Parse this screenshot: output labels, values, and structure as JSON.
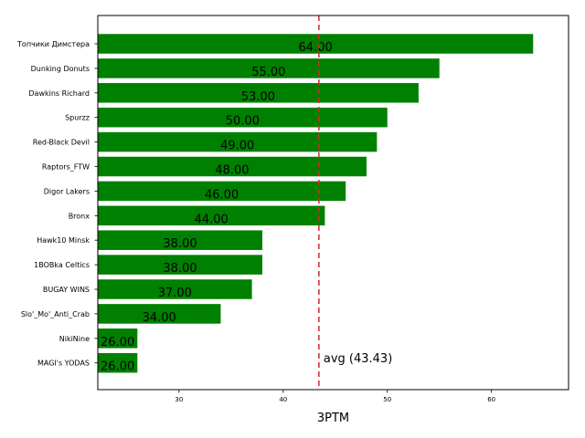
{
  "chart_data": {
    "type": "bar",
    "orientation": "horizontal",
    "categories": [
      "Топчики Димстера",
      "Dunking Donuts",
      "Dawkins Richard",
      "Spurzz",
      "Red-Black Devil",
      "Raptors_FTW",
      "Digor Lakers",
      "Bronx",
      "Hawk10 Minsk",
      "1BOBka Celtics",
      "BUGAY WINS",
      "Slo'_Mo'_Anti_Crab",
      "NikiNine",
      "MAGI's YODAS"
    ],
    "values": [
      64,
      55,
      53,
      50,
      49,
      48,
      46,
      44,
      38,
      38,
      37,
      34,
      26,
      26
    ],
    "value_labels": [
      "64.00",
      "55.00",
      "53.00",
      "50.00",
      "49.00",
      "48.00",
      "46.00",
      "44.00",
      "38.00",
      "38.00",
      "37.00",
      "34.00",
      "26.00",
      "26.00"
    ],
    "xlabel": "3PTM",
    "ylabel": "",
    "xlim": [
      22.2,
      67.4
    ],
    "xticks": [
      30,
      40,
      50,
      60
    ],
    "xtick_labels": [
      "30",
      "40",
      "50",
      "60"
    ],
    "bar_color": "#008000",
    "grid": false,
    "average": {
      "value": 43.43,
      "label": "avg (43.43)",
      "color": "#d62728",
      "style": "dashed"
    }
  }
}
